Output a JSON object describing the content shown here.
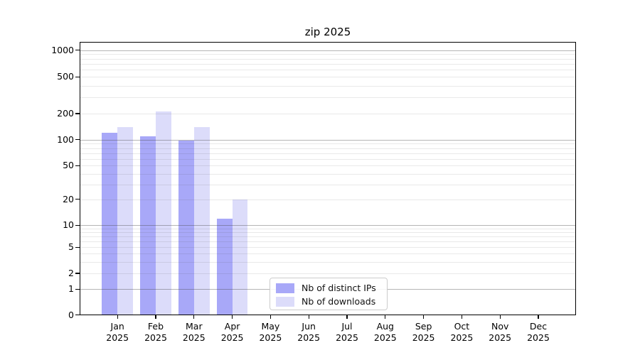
{
  "chart_data": {
    "type": "bar",
    "title": "zip 2025",
    "categories": [
      "Jan 2025",
      "Feb 2025",
      "Mar 2025",
      "Apr 2025",
      "May 2025",
      "Jun 2025",
      "Jul 2025",
      "Aug 2025",
      "Sep 2025",
      "Oct 2025",
      "Nov 2025",
      "Dec 2025"
    ],
    "series": [
      {
        "name": "Nb of distinct IPs",
        "color": "#a8a8f8",
        "values": [
          120,
          110,
          97,
          12,
          0,
          0,
          0,
          0,
          0,
          0,
          0,
          0
        ]
      },
      {
        "name": "Nb of downloads",
        "color": "#dcdcfa",
        "values": [
          140,
          210,
          140,
          20,
          0,
          0,
          0,
          0,
          0,
          0,
          0,
          0
        ]
      }
    ],
    "xlabel": "",
    "ylabel": "",
    "yscale": "log-like with linear zero region",
    "y_tick_labels": [
      "0",
      "1",
      "2",
      "5",
      "10",
      "20",
      "50",
      "100",
      "200",
      "500",
      "1000"
    ],
    "y_major_gridlines": [
      1,
      10,
      100,
      1000
    ],
    "ylim": [
      0,
      1300
    ],
    "grid": "horizontal, major and minor",
    "legend_position": "inside lower-center",
    "background_color": "#ffffff",
    "bar_colors": {
      "distinct_ips": "#a8a8f8",
      "downloads": "#dcdcfa"
    }
  }
}
